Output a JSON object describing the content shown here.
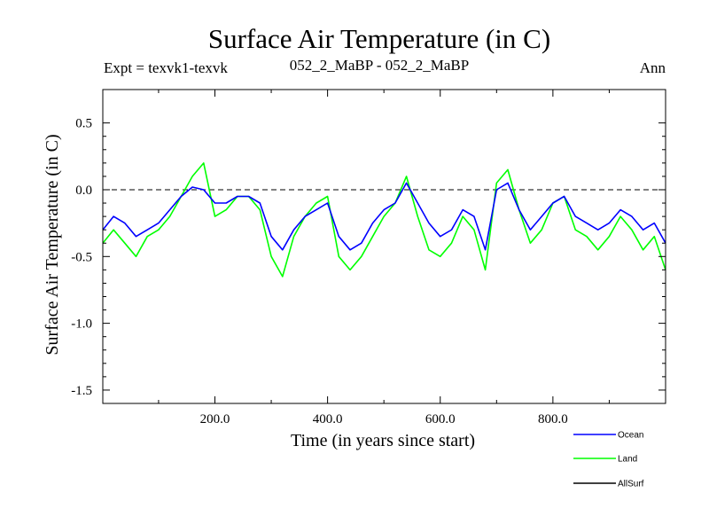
{
  "chart_data": {
    "type": "line",
    "title": "Surface Air Temperature (in C)",
    "subtitle_left": "Expt = texvk1-texvk",
    "subtitle_center": "052_2_MaBP - 052_2_MaBP",
    "subtitle_right": "Ann",
    "xlabel": "Time (in years since start)",
    "ylabel": "Surface Air Temperature (in C)",
    "xlim": [
      1,
      1000
    ],
    "ylim": [
      -1.6,
      0.75
    ],
    "xticks": [
      200,
      400,
      600,
      800
    ],
    "xtick_labels": [
      "200.0",
      "400.0",
      "600.0",
      "800.0"
    ],
    "yticks": [
      0.5,
      0.0,
      -0.5,
      -1.0,
      -1.5
    ],
    "ytick_labels": [
      "0.5",
      "0.0",
      "-0.5",
      "-1.0",
      "-1.5"
    ],
    "reference_line_y": 0.0,
    "legend_position": "bottom-right",
    "series": [
      {
        "name": "Ocean",
        "color": "#0000ff",
        "x": [
          1,
          20,
          40,
          60,
          80,
          100,
          120,
          140,
          160,
          180,
          200,
          220,
          240,
          260,
          280,
          300,
          320,
          340,
          360,
          380,
          400,
          420,
          440,
          460,
          480,
          500,
          520,
          540,
          560,
          580,
          600,
          620,
          640,
          660,
          680,
          700,
          720,
          740,
          760,
          780,
          800,
          820,
          840,
          860,
          880,
          900,
          920,
          940,
          960,
          980,
          1000
        ],
        "values": [
          -0.3,
          -0.2,
          -0.25,
          -0.35,
          -0.3,
          -0.25,
          -0.15,
          -0.05,
          0.02,
          0.0,
          -0.1,
          -0.1,
          -0.05,
          -0.05,
          -0.1,
          -0.35,
          -0.45,
          -0.3,
          -0.2,
          -0.15,
          -0.1,
          -0.35,
          -0.45,
          -0.4,
          -0.25,
          -0.15,
          -0.1,
          0.05,
          -0.1,
          -0.25,
          -0.35,
          -0.3,
          -0.15,
          -0.2,
          -0.45,
          0.0,
          0.05,
          -0.15,
          -0.3,
          -0.2,
          -0.1,
          -0.05,
          -0.2,
          -0.25,
          -0.3,
          -0.25,
          -0.15,
          -0.2,
          -0.3,
          -0.25,
          -0.4
        ]
      },
      {
        "name": "Land",
        "color": "#00ff00",
        "x": [
          1,
          20,
          40,
          60,
          80,
          100,
          120,
          140,
          160,
          180,
          200,
          220,
          240,
          260,
          280,
          300,
          320,
          340,
          360,
          380,
          400,
          420,
          440,
          460,
          480,
          500,
          520,
          540,
          560,
          580,
          600,
          620,
          640,
          660,
          680,
          700,
          720,
          740,
          760,
          780,
          800,
          820,
          840,
          860,
          880,
          900,
          920,
          940,
          960,
          980,
          1000
        ],
        "values": [
          -0.4,
          -0.3,
          -0.4,
          -0.5,
          -0.35,
          -0.3,
          -0.2,
          -0.05,
          0.1,
          0.2,
          -0.2,
          -0.15,
          -0.05,
          -0.05,
          -0.15,
          -0.5,
          -0.65,
          -0.35,
          -0.2,
          -0.1,
          -0.05,
          -0.5,
          -0.6,
          -0.5,
          -0.35,
          -0.2,
          -0.1,
          0.1,
          -0.2,
          -0.45,
          -0.5,
          -0.4,
          -0.2,
          -0.3,
          -0.6,
          0.05,
          0.15,
          -0.15,
          -0.4,
          -0.3,
          -0.1,
          -0.05,
          -0.3,
          -0.35,
          -0.45,
          -0.35,
          -0.2,
          -0.3,
          -0.45,
          -0.35,
          -0.6
        ]
      },
      {
        "name": "AllSurf",
        "color": "#000000",
        "x": [],
        "values": []
      }
    ]
  }
}
